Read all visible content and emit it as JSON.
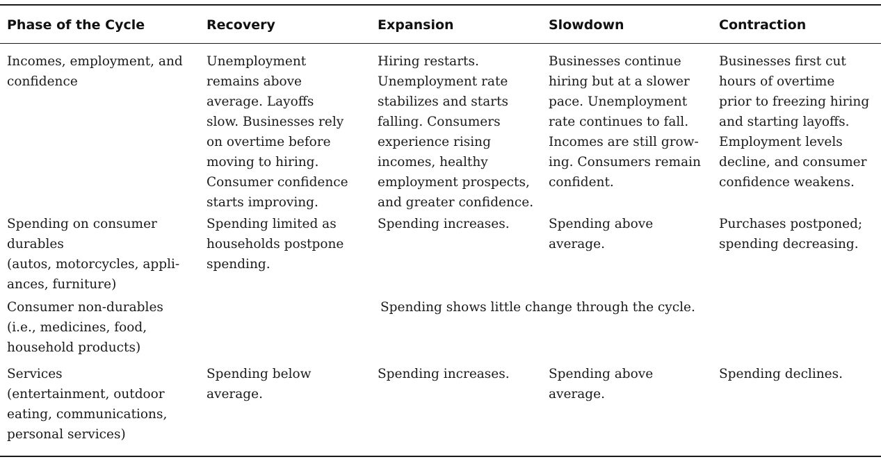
{
  "table": {
    "headers": [
      "Phase of the Cycle",
      "Recovery",
      "Expansion",
      "Slowdown",
      "Contraction"
    ],
    "rows": [
      {
        "label": "Incomes, employment, and\nconfidence",
        "recovery": "Unemployment\nremains above\naverage. Layoffs\nslow. Businesses rely\non overtime before\nmoving to hiring.\nConsumer confidence\nstarts improving.",
        "expansion": "Hiring restarts.\nUnemployment rate\nstabilizes and starts\nfalling. Consumers\nexperience rising\nincomes, healthy\nemployment prospects,\nand greater confidence.",
        "slowdown": "Businesses continue\nhiring but at a slower\npace. Unemployment\nrate continues to fall.\nIncomes are still grow-\ning. Consumers remain\nconfident.",
        "contraction": "Businesses first cut\nhours of overtime\nprior to freezing hiring\nand starting layoffs.\nEmployment levels\ndecline, and consumer\nconfidence weakens."
      },
      {
        "label": "Spending on consumer\ndurables\n(autos, motorcycles, appli-\nances, furniture)",
        "recovery": "Spending limited as\nhouseholds postpone\nspending.",
        "expansion": "Spending increases.",
        "slowdown": "Spending above\naverage.",
        "contraction": "Purchases postponed;\nspending decreasing."
      },
      {
        "label": "Consumer non-durables\n(i.e., medicines, food,\nhousehold products)",
        "span_text": "Spending shows little change through the cycle."
      },
      {
        "label": "Services\n(entertainment, outdoor\neating, communications,\npersonal services)",
        "recovery": "Spending below\naverage.",
        "expansion": "Spending increases.",
        "slowdown": "Spending above\naverage.",
        "contraction": "Spending declines."
      }
    ]
  }
}
